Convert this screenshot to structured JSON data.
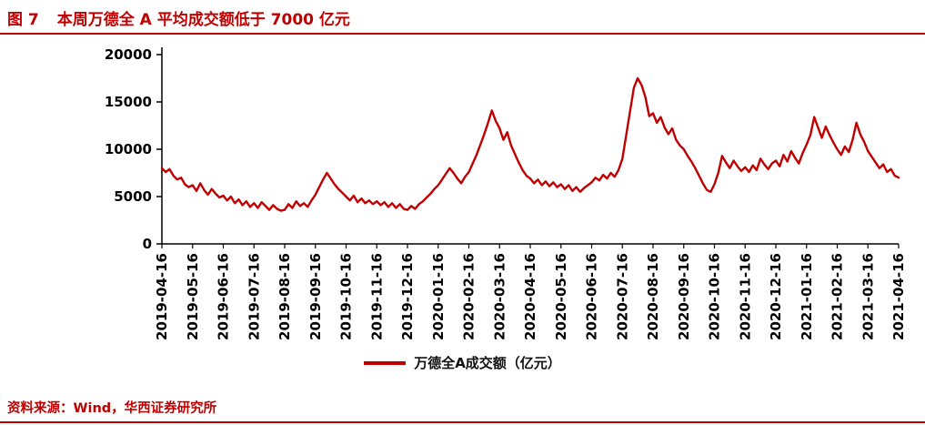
{
  "header": {
    "figure_label": "图 7",
    "title": "本周万德全 A 平均成交额低于 7000 亿元"
  },
  "legend": {
    "series_label": "万德全A成交额（亿元）"
  },
  "footer": {
    "source": "资料来源：Wind，华西证券研究所"
  },
  "colors": {
    "accent": "#C00000",
    "line": "#C00000",
    "axis": "#000000",
    "tick_text": "#000000"
  },
  "chart_data": {
    "type": "line",
    "title": "本周万德全 A 平均成交额低于 7000 亿元",
    "xlabel": "",
    "ylabel": "",
    "ylim": [
      0,
      20000
    ],
    "yticks": [
      0,
      5000,
      10000,
      15000,
      20000
    ],
    "grid": false,
    "legend_position": "bottom",
    "xticks": [
      "2019-04-16",
      "2019-05-16",
      "2019-06-16",
      "2019-07-16",
      "2019-08-16",
      "2019-09-16",
      "2019-10-16",
      "2019-11-16",
      "2019-12-16",
      "2020-01-16",
      "2020-02-16",
      "2020-03-16",
      "2020-04-16",
      "2020-05-16",
      "2020-06-16",
      "2020-07-16",
      "2020-08-16",
      "2020-09-16",
      "2020-10-16",
      "2020-11-16",
      "2020-12-16",
      "2021-01-16",
      "2021-02-16",
      "2021-03-16",
      "2021-04-16"
    ],
    "series": [
      {
        "name": "万德全A成交额（亿元）",
        "values": [
          8000,
          7600,
          7900,
          7200,
          6800,
          7000,
          6300,
          6000,
          6200,
          5600,
          6400,
          5700,
          5200,
          5800,
          5300,
          4900,
          5100,
          4600,
          5000,
          4300,
          4700,
          4100,
          4500,
          3900,
          4300,
          3800,
          4400,
          4000,
          3600,
          4100,
          3700,
          3500,
          3600,
          4200,
          3800,
          4500,
          4000,
          4300,
          3900,
          4600,
          5200,
          6000,
          6800,
          7500,
          6900,
          6300,
          5800,
          5400,
          5000,
          4600,
          5100,
          4400,
          4800,
          4300,
          4600,
          4200,
          4500,
          4100,
          4400,
          3900,
          4300,
          3800,
          4200,
          3700,
          3600,
          4000,
          3700,
          4200,
          4500,
          4900,
          5300,
          5800,
          6200,
          6800,
          7400,
          8000,
          7500,
          6900,
          6400,
          7100,
          7600,
          8500,
          9400,
          10500,
          11600,
          12800,
          14100,
          13000,
          12200,
          11000,
          11800,
          10400,
          9500,
          8600,
          7800,
          7200,
          6900,
          6400,
          6800,
          6200,
          6600,
          6100,
          6500,
          6000,
          6300,
          5800,
          6200,
          5600,
          6000,
          5500,
          5900,
          6200,
          6500,
          7000,
          6700,
          7300,
          6900,
          7500,
          7100,
          7800,
          9000,
          11500,
          14000,
          16500,
          17500,
          16800,
          15500,
          13500,
          13800,
          12800,
          13400,
          12300,
          11600,
          12200,
          11000,
          10400,
          10000,
          9300,
          8700,
          8000,
          7200,
          6400,
          5700,
          5500,
          6300,
          7500,
          9300,
          8600,
          8000,
          8800,
          8200,
          7700,
          8100,
          7600,
          8300,
          7800,
          9000,
          8400,
          7900,
          8500,
          8800,
          8200,
          9400,
          8700,
          9800,
          9100,
          8500,
          9600,
          10500,
          11500,
          13400,
          12300,
          11200,
          12400,
          11500,
          10700,
          10000,
          9400,
          10300,
          9700,
          11000,
          12800,
          11600,
          10800,
          9800,
          9200,
          8600,
          8000,
          8400,
          7600,
          7900,
          7200,
          7000
        ]
      }
    ]
  }
}
